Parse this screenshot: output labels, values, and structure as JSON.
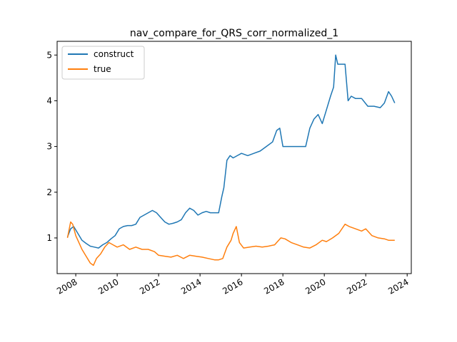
{
  "chart_data": {
    "type": "line",
    "title": "nav_compare_for_QRS_corr_normalized_1",
    "xlabel": "",
    "ylabel": "",
    "xlim": [
      2007.1,
      2024.2
    ],
    "ylim": [
      0.22,
      5.3
    ],
    "x_ticks": [
      "2008",
      "2010",
      "2012",
      "2014",
      "2016",
      "2018",
      "2020",
      "2022",
      "2024"
    ],
    "y_ticks": [
      "1",
      "2",
      "3",
      "4",
      "5"
    ],
    "grid": false,
    "legend_position": "top-left",
    "series": [
      {
        "name": "construct",
        "color": "#1f77b4",
        "x": [
          2007.6,
          2007.75,
          2007.9,
          2008.1,
          2008.3,
          2008.5,
          2008.7,
          2008.9,
          2009.1,
          2009.3,
          2009.5,
          2009.7,
          2009.9,
          2010.1,
          2010.3,
          2010.5,
          2010.7,
          2010.9,
          2011.1,
          2011.3,
          2011.5,
          2011.7,
          2011.9,
          2012.1,
          2012.3,
          2012.5,
          2012.7,
          2012.9,
          2013.1,
          2013.3,
          2013.5,
          2013.7,
          2013.9,
          2014.1,
          2014.3,
          2014.5,
          2014.7,
          2014.9,
          2015.05,
          2015.15,
          2015.3,
          2015.45,
          2015.6,
          2015.8,
          2016.0,
          2016.3,
          2016.6,
          2016.9,
          2017.2,
          2017.5,
          2017.7,
          2017.85,
          2018.0,
          2018.3,
          2018.6,
          2018.9,
          2019.1,
          2019.3,
          2019.5,
          2019.7,
          2019.9,
          2020.1,
          2020.3,
          2020.45,
          2020.55,
          2020.65,
          2020.8,
          2021.0,
          2021.15,
          2021.3,
          2021.5,
          2021.8,
          2022.1,
          2022.4,
          2022.7,
          2022.9,
          2023.1,
          2023.25,
          2023.4
        ],
        "values": [
          1.02,
          1.2,
          1.25,
          1.1,
          0.95,
          0.88,
          0.82,
          0.8,
          0.78,
          0.85,
          0.9,
          0.98,
          1.05,
          1.2,
          1.25,
          1.27,
          1.27,
          1.3,
          1.45,
          1.5,
          1.55,
          1.6,
          1.55,
          1.45,
          1.35,
          1.3,
          1.32,
          1.35,
          1.4,
          1.55,
          1.65,
          1.6,
          1.5,
          1.55,
          1.58,
          1.55,
          1.55,
          1.55,
          1.9,
          2.1,
          2.7,
          2.8,
          2.75,
          2.8,
          2.85,
          2.8,
          2.85,
          2.9,
          3.0,
          3.1,
          3.35,
          3.4,
          3.0,
          3.0,
          3.0,
          3.0,
          3.0,
          3.4,
          3.6,
          3.7,
          3.5,
          3.8,
          4.1,
          4.3,
          5.0,
          4.8,
          4.8,
          4.8,
          4.0,
          4.1,
          4.05,
          4.05,
          3.88,
          3.88,
          3.85,
          3.95,
          4.2,
          4.1,
          3.95
        ]
      },
      {
        "name": "true",
        "color": "#ff7f0e",
        "x": [
          2007.6,
          2007.75,
          2007.85,
          2008.0,
          2008.15,
          2008.3,
          2008.5,
          2008.7,
          2008.85,
          2009.0,
          2009.2,
          2009.4,
          2009.6,
          2009.8,
          2010.0,
          2010.3,
          2010.6,
          2010.9,
          2011.2,
          2011.5,
          2011.8,
          2012.0,
          2012.3,
          2012.6,
          2012.9,
          2013.2,
          2013.5,
          2013.8,
          2014.1,
          2014.4,
          2014.7,
          2014.9,
          2015.1,
          2015.3,
          2015.5,
          2015.6,
          2015.75,
          2015.9,
          2016.1,
          2016.4,
          2016.7,
          2017.0,
          2017.3,
          2017.6,
          2017.9,
          2018.1,
          2018.4,
          2018.7,
          2019.0,
          2019.3,
          2019.6,
          2019.9,
          2020.1,
          2020.4,
          2020.7,
          2021.0,
          2021.2,
          2021.5,
          2021.8,
          2022.0,
          2022.3,
          2022.6,
          2022.9,
          2023.1,
          2023.4
        ],
        "values": [
          1.0,
          1.35,
          1.3,
          1.05,
          0.9,
          0.75,
          0.6,
          0.45,
          0.4,
          0.55,
          0.65,
          0.8,
          0.9,
          0.85,
          0.8,
          0.85,
          0.75,
          0.8,
          0.75,
          0.75,
          0.7,
          0.62,
          0.6,
          0.58,
          0.62,
          0.55,
          0.62,
          0.6,
          0.58,
          0.55,
          0.52,
          0.52,
          0.55,
          0.8,
          0.95,
          1.1,
          1.25,
          0.9,
          0.78,
          0.8,
          0.82,
          0.8,
          0.82,
          0.85,
          1.0,
          0.98,
          0.9,
          0.85,
          0.8,
          0.78,
          0.85,
          0.95,
          0.92,
          1.0,
          1.1,
          1.3,
          1.25,
          1.2,
          1.15,
          1.2,
          1.05,
          1.0,
          0.98,
          0.95,
          0.95
        ]
      }
    ]
  }
}
